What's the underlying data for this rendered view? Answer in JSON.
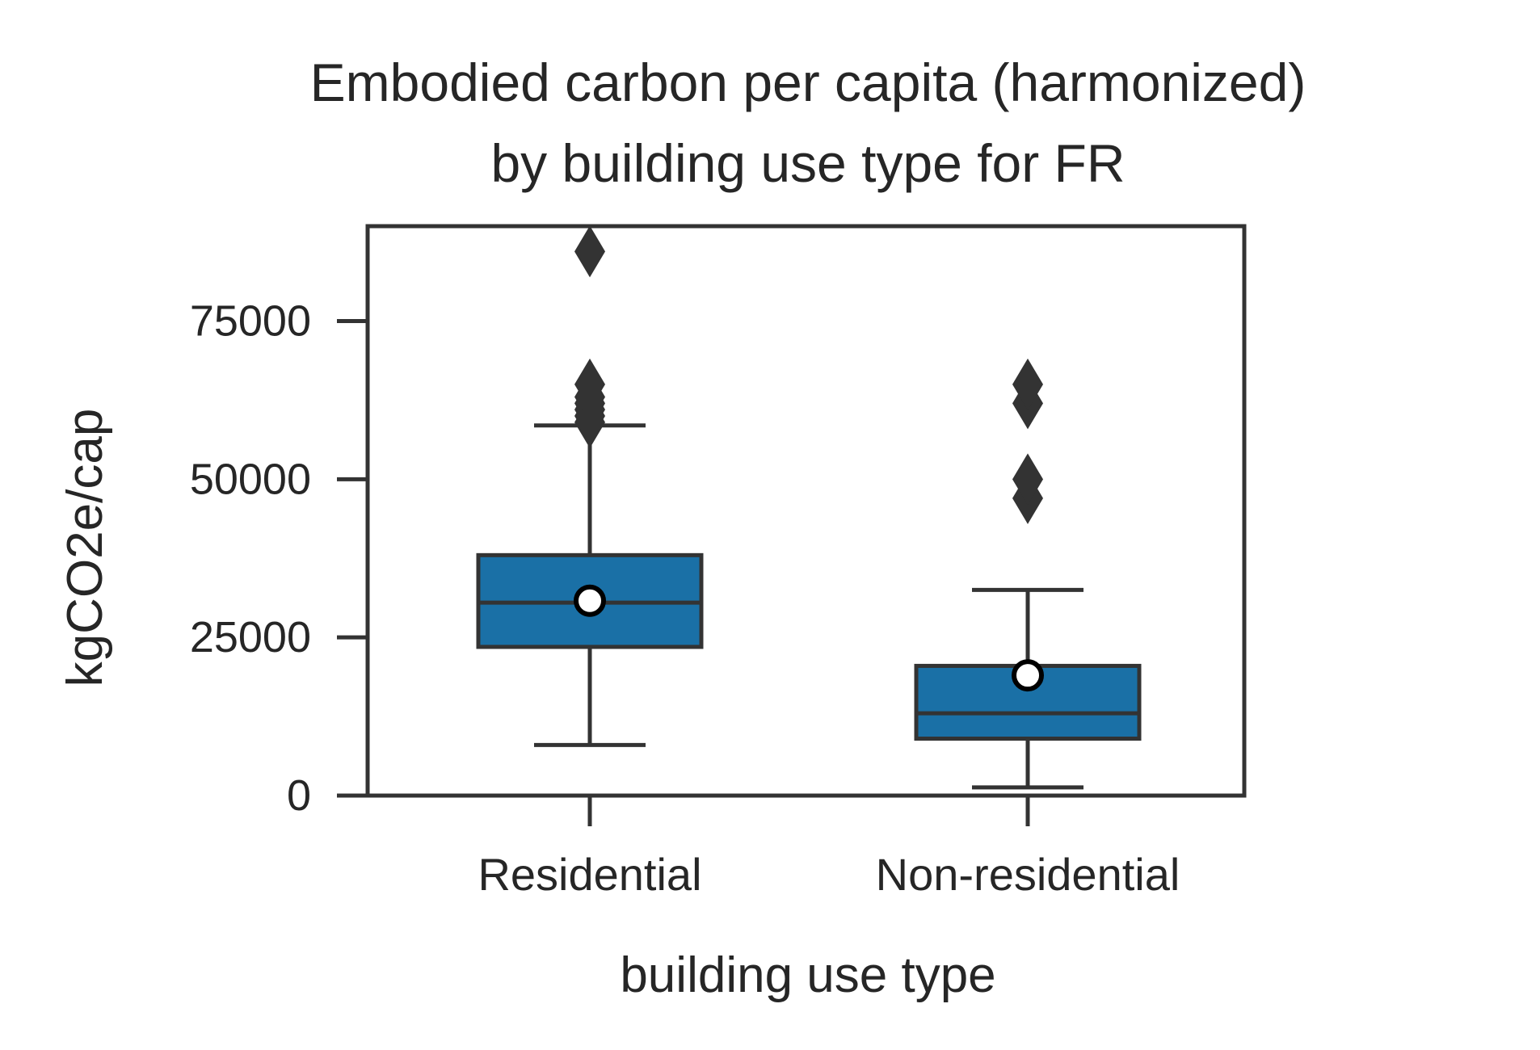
{
  "colors": {
    "box_fill": "#1A70A6",
    "line": "#333333",
    "text": "#262626",
    "mean_fill": "#FFFFFF",
    "mean_edge": "#000000",
    "background": "#FFFFFF"
  },
  "chart_data": {
    "type": "box",
    "title": "Embodied carbon per capita (harmonized)\nby building use type for FR",
    "title_lines": [
      "Embodied carbon per capita (harmonized)",
      "by building use type for FR"
    ],
    "xlabel": "building use type",
    "ylabel": "kgCO2e/cap",
    "ylim": [
      0,
      90000
    ],
    "yticks": [
      0,
      25000,
      50000,
      75000
    ],
    "ytick_labels": [
      "0",
      "25000",
      "50000",
      "75000"
    ],
    "categories": [
      "Residential",
      "Non-residential"
    ],
    "grid": false,
    "legend": "none",
    "boxes": [
      {
        "category": "Residential",
        "whisker_low": 8000,
        "q1": 23500,
        "median": 30500,
        "q3": 38000,
        "whisker_high": 58500,
        "mean": 30800,
        "outliers": [
          59000,
          60000,
          61000,
          62000,
          63000,
          65000,
          86000
        ]
      },
      {
        "category": "Non-residential",
        "whisker_low": 1300,
        "q1": 9000,
        "median": 13000,
        "q3": 20500,
        "whisker_high": 32500,
        "mean": 19000,
        "outliers": [
          47000,
          50000,
          62000,
          65000
        ]
      }
    ]
  }
}
